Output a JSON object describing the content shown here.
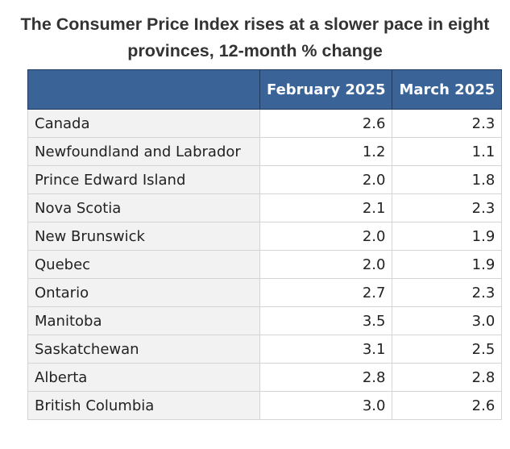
{
  "title": "The Consumer Price Index rises at a slower pace in eight provinces, 12-month % change",
  "table": {
    "header": [
      "",
      "February 2025",
      "March 2025"
    ],
    "rows": [
      [
        "Canada",
        "2.6",
        "2.3"
      ],
      [
        "Newfoundland and Labrador",
        "1.2",
        "1.1"
      ],
      [
        "Prince Edward Island",
        "2.0",
        "1.8"
      ],
      [
        "Nova Scotia",
        "2.1",
        "2.3"
      ],
      [
        "New Brunswick",
        "2.0",
        "1.9"
      ],
      [
        "Quebec",
        "2.0",
        "1.9"
      ],
      [
        "Ontario",
        "2.7",
        "2.3"
      ],
      [
        "Manitoba",
        "3.5",
        "3.0"
      ],
      [
        "Saskatchewan",
        "3.1",
        "2.5"
      ],
      [
        "Alberta",
        "2.8",
        "2.8"
      ],
      [
        "British Columbia",
        "3.0",
        "2.6"
      ]
    ]
  }
}
